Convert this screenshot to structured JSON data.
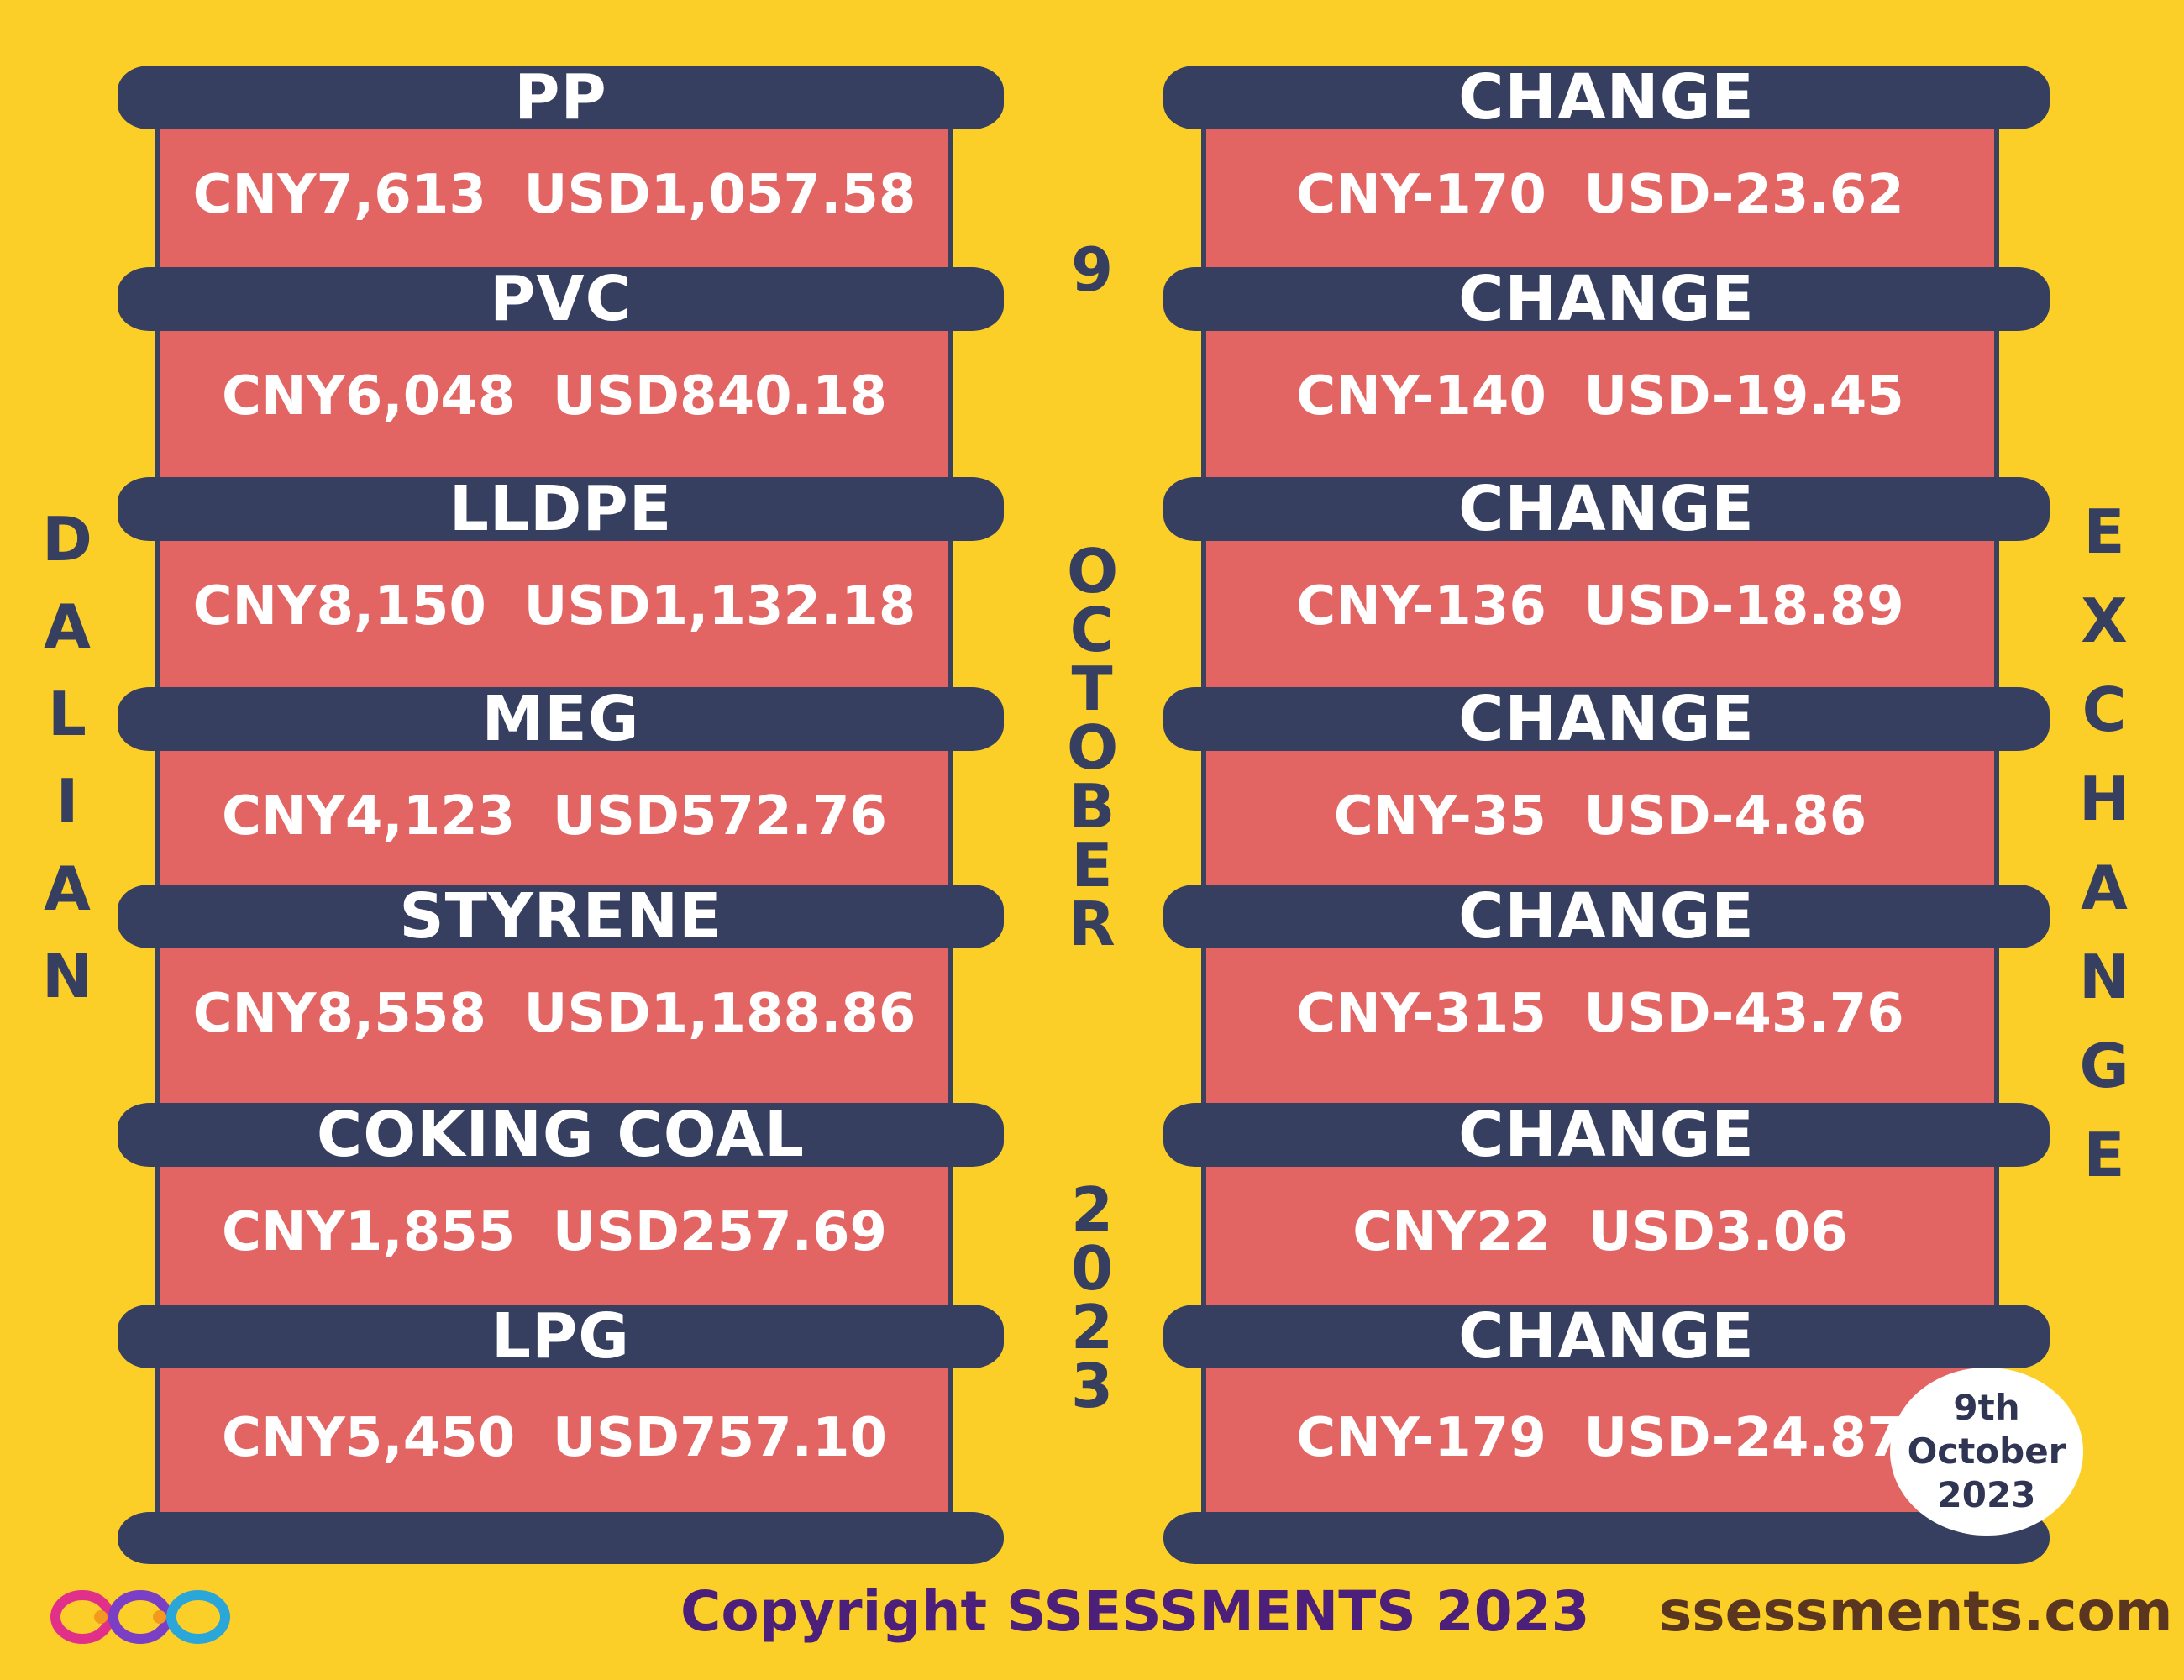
{
  "side_labels": {
    "left": [
      "D",
      "A",
      "L",
      "I",
      "A",
      "N"
    ],
    "right": [
      "E",
      "X",
      "C",
      "H",
      "A",
      "N",
      "G",
      "E"
    ]
  },
  "center_date": {
    "day": [
      "9"
    ],
    "month": [
      "O",
      "C",
      "T",
      "O",
      "B",
      "E",
      "R"
    ],
    "year": [
      "2",
      "0",
      "2",
      "3"
    ]
  },
  "commodities": [
    {
      "name": "PP",
      "price": "CNY7,613  USD1,057.58",
      "change_label": "CHANGE",
      "change": "CNY-170  USD-23.62"
    },
    {
      "name": "PVC",
      "price": "CNY6,048  USD840.18",
      "change_label": "CHANGE",
      "change": "CNY-140  USD-19.45"
    },
    {
      "name": "LLDPE",
      "price": "CNY8,150  USD1,132.18",
      "change_label": "CHANGE",
      "change": "CNY-136  USD-18.89"
    },
    {
      "name": "MEG",
      "price": "CNY4,123  USD572.76",
      "change_label": "CHANGE",
      "change": "CNY-35  USD-4.86"
    },
    {
      "name": "STYRENE",
      "price": "CNY8,558  USD1,188.86",
      "change_label": "CHANGE",
      "change": "CNY-315  USD-43.76"
    },
    {
      "name": "COKING COAL",
      "price": "CNY1,855  USD257.69",
      "change_label": "CHANGE",
      "change": "CNY22  USD3.06"
    },
    {
      "name": "LPG",
      "price": "CNY5,450  USD757.10",
      "change_label": "CHANGE",
      "change": "CNY-179  USD-24.87"
    }
  ],
  "badge": {
    "line1": "9th",
    "line2": "October",
    "line3": "2023"
  },
  "footer": {
    "copyright": "Copyright SSESSMENTS 2023",
    "website": "ssessments.com"
  },
  "colors": {
    "background": "#fbcf28",
    "panel": "#e36563",
    "bar": "#363f60",
    "accent_text": "#363f60"
  },
  "icons": [
    "ssessments-logo-icon"
  ]
}
